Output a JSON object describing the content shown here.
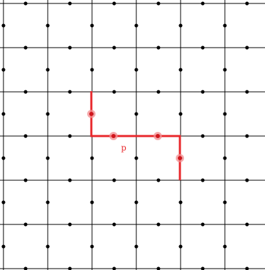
{
  "diagram": {
    "label": "p",
    "colors": {
      "background": "#ffffff",
      "grid": "#000000",
      "dots": "#000000",
      "path": "#e8262a",
      "marker_halo": "#f28c8f",
      "marker_core": "#d1151b"
    }
  }
}
